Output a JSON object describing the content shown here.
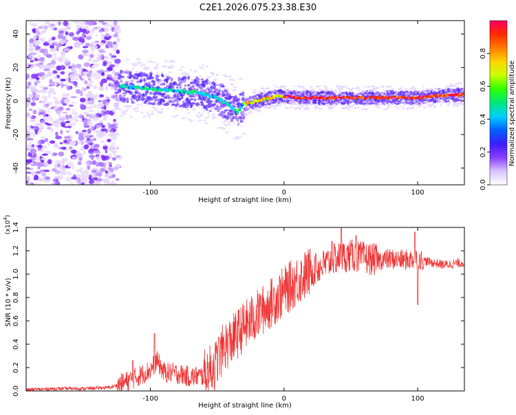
{
  "title": "C2E1.2026.075.23.38.E30",
  "colors": {
    "snr_line": "#ee3333",
    "spectrum_low": "#e6d6ff",
    "spectrum_mid": "#7a2cff",
    "colorbar_stops": [
      "#ffffff",
      "#d8c4ff",
      "#8a3cff",
      "#3a1dff",
      "#0060ff",
      "#00d0ff",
      "#00e87a",
      "#30ff00",
      "#c8ff00",
      "#ffd400",
      "#ff7a00",
      "#ff2a00",
      "#ff0060"
    ]
  },
  "chart_data": [
    {
      "type": "heatmap",
      "name": "spectrogram",
      "xlabel": "Height of straight line (km)",
      "ylabel": "Frequency (Hz)",
      "xlim": [
        -193,
        135
      ],
      "ylim": [
        -50,
        48
      ],
      "xticks": [
        -100,
        0,
        100
      ],
      "xtick_labels": [
        "-100",
        "0",
        "100"
      ],
      "yticks": [
        -40,
        -20,
        0,
        20,
        40
      ],
      "ytick_labels": [
        "-40",
        "-20",
        "0",
        "20",
        "40"
      ],
      "noise_region_x": [
        -193,
        -123
      ],
      "ridge": {
        "x": [
          -125,
          -110,
          -95,
          -80,
          -65,
          -50,
          -40,
          -35,
          -30,
          -20,
          -10,
          0,
          10,
          20,
          40,
          60,
          80,
          100,
          110,
          135
        ],
        "y": [
          9,
          8,
          7,
          6,
          5,
          2,
          -3,
          -7,
          -2,
          0,
          2,
          3,
          2,
          2,
          2,
          2,
          2,
          2,
          3,
          4
        ]
      },
      "colorbar": {
        "label": "Normalized spectral amplitude",
        "range": [
          0,
          1
        ],
        "ticks": [
          0.0,
          0.2,
          0.4,
          0.6,
          0.8
        ],
        "tick_labels": [
          "0.0",
          "0.2",
          "0.4",
          "0.6",
          "0.8"
        ]
      }
    },
    {
      "type": "line",
      "name": "snr",
      "xlabel": "Height of straight line (km)",
      "ylabel": "SNR (10 * v/v)",
      "exponent_label": "(x10",
      "exponent_power": "4",
      "exponent_close": ")",
      "xlim": [
        -193,
        135
      ],
      "ylim": [
        0,
        1.4
      ],
      "xticks": [
        -100,
        0,
        100
      ],
      "xtick_labels": [
        "-100",
        "0",
        "100"
      ],
      "yticks": [
        0.0,
        0.2,
        0.4,
        0.6,
        0.8,
        1.0,
        1.2,
        1.4
      ],
      "ytick_labels": [
        "0.0",
        "0.2",
        "0.4",
        "0.6",
        "0.8",
        "1.0",
        "1.2",
        "1.4"
      ],
      "series": [
        {
          "name": "SNR",
          "x": [
            -193,
            -170,
            -150,
            -130,
            -120,
            -110,
            -100,
            -95,
            -90,
            -80,
            -70,
            -60,
            -50,
            -45,
            -40,
            -30,
            -20,
            -10,
            0,
            10,
            20,
            30,
            40,
            50,
            60,
            70,
            80,
            90,
            100,
            110,
            120,
            135
          ],
          "y": [
            0.01,
            0.02,
            0.02,
            0.03,
            0.07,
            0.12,
            0.18,
            0.26,
            0.16,
            0.15,
            0.12,
            0.13,
            0.24,
            0.38,
            0.42,
            0.55,
            0.65,
            0.75,
            0.85,
            0.95,
            1.02,
            1.08,
            1.14,
            1.16,
            1.14,
            1.12,
            1.13,
            1.12,
            1.13,
            1.1,
            1.08,
            1.1
          ]
        }
      ],
      "peaks": [
        {
          "x": -113,
          "y": 0.26
        },
        {
          "x": -97,
          "y": 0.49
        },
        {
          "x": -49,
          "y": 0.46
        },
        {
          "x": -17,
          "y": 0.73
        },
        {
          "x": 24,
          "y": 1.17
        },
        {
          "x": 36,
          "y": 1.28
        },
        {
          "x": 43,
          "y": 1.4
        },
        {
          "x": 54,
          "y": 1.33
        },
        {
          "x": 98,
          "y": 1.36
        },
        {
          "x": 100,
          "y": 0.74
        }
      ]
    }
  ]
}
